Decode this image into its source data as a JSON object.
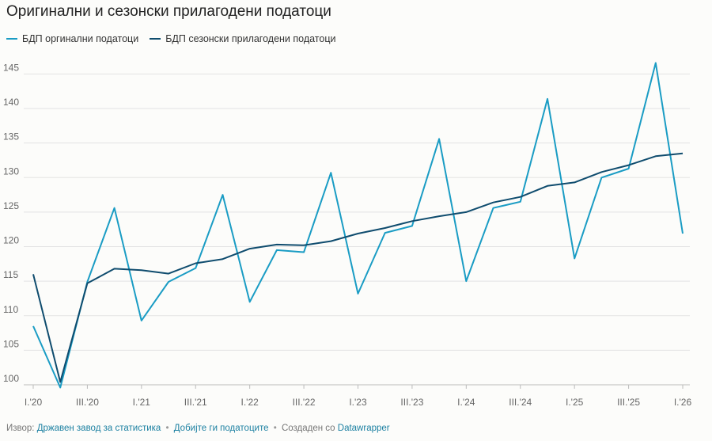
{
  "title": "Оригинални и сезонски прилагодени податоци",
  "legend": {
    "series_a": "БДП оргинални податоци",
    "series_b": "БДП сезонски прилагодени податоци"
  },
  "footer": {
    "source_prefix": "Извор:",
    "source_link": "Државен завод за статистика",
    "data_link": "Добијте ги податоците",
    "created_prefix": "Создаден со",
    "created_link": "Datawrapper"
  },
  "colors": {
    "series_a": "#1a9cc4",
    "series_b": "#0f4c6e",
    "grid": "#e3e3e3",
    "background": "#fcfcfa"
  },
  "chart_data": {
    "type": "line",
    "ylim": [
      100,
      147
    ],
    "yticks": [
      100,
      105,
      110,
      115,
      120,
      125,
      130,
      135,
      140,
      145
    ],
    "xtick_labels": [
      "I.'20",
      "III.'20",
      "I.'21",
      "III.'21",
      "I.'22",
      "III.'22",
      "I.'23",
      "III.'23",
      "I.'24",
      "III.'24",
      "I.'25",
      "III.'25",
      "I.'26"
    ],
    "x": [
      "I.'20",
      "II.'20",
      "III.'20",
      "IV.'20",
      "I.'21",
      "II.'21",
      "III.'21",
      "IV.'21",
      "I.'22",
      "II.'22",
      "III.'22",
      "IV.'22",
      "I.'23",
      "II.'23",
      "III.'23",
      "IV.'23",
      "I.'24",
      "II.'24",
      "III.'24",
      "IV.'24",
      "I.'25",
      "II.'25",
      "III.'25",
      "IV.'25",
      "I.'26"
    ],
    "series": [
      {
        "name": "БДП оргинални податоци",
        "values": [
          108.5,
          99.6,
          114.9,
          125.6,
          109.3,
          114.9,
          116.9,
          127.5,
          112.0,
          119.5,
          119.2,
          130.7,
          113.2,
          122.0,
          123.0,
          135.6,
          115.0,
          125.6,
          126.5,
          141.4,
          118.3,
          130.0,
          131.3,
          146.6,
          121.9
        ]
      },
      {
        "name": "БДП сезонски прилагодени податоци",
        "values": [
          116.0,
          100.4,
          114.7,
          116.8,
          116.6,
          116.1,
          117.6,
          118.2,
          119.7,
          120.3,
          120.2,
          120.8,
          121.9,
          122.7,
          123.7,
          124.4,
          125.0,
          126.4,
          127.2,
          128.8,
          129.3,
          130.8,
          131.8,
          133.1,
          133.5
        ]
      }
    ]
  }
}
